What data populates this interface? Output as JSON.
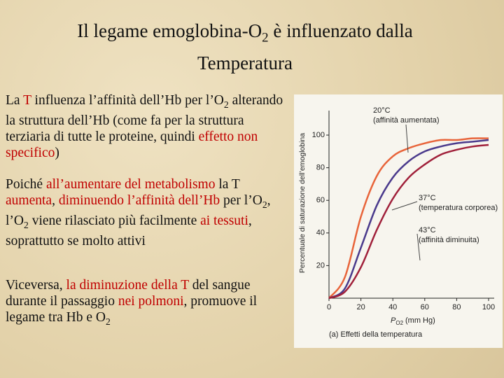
{
  "title": [
    {
      "text": "Il legame emoglobina-O"
    },
    {
      "text": "2",
      "sub": true
    },
    {
      "text": " è influenzato dalla Temperatura"
    }
  ],
  "paragraphs": [
    [
      {
        "text": "La "
      },
      {
        "text": "T",
        "color": "#c00000"
      },
      {
        "text": " influenza l’affinità dell’Hb per l’O"
      },
      {
        "text": "2",
        "sub": true
      },
      {
        "text": " alterando la struttura dell’Hb (come fa per la struttura terziaria di tutte le proteine, quindi "
      },
      {
        "text": "effetto non specifico",
        "color": "#c00000"
      },
      {
        "text": ")"
      }
    ],
    [
      {
        "text": "Poiché "
      },
      {
        "text": "all’aumentare del metabolismo",
        "color": "#c00000"
      },
      {
        "text": " la T "
      },
      {
        "text": "aumenta",
        "color": "#c00000"
      },
      {
        "text": ", "
      },
      {
        "text": "diminuendo l’affinità dell’Hb",
        "color": "#c00000"
      },
      {
        "text": " per l’O"
      },
      {
        "text": "2",
        "sub": true
      },
      {
        "text": ", l’O"
      },
      {
        "text": "2",
        "sub": true
      },
      {
        "text": " viene rilasciato più facilmente "
      },
      {
        "text": "ai tessuti",
        "color": "#c00000"
      },
      {
        "text": ", soprattutto se molto attivi"
      }
    ],
    [
      {
        "text": "Viceversa, "
      },
      {
        "text": "la diminuzione della T",
        "color": "#c00000"
      },
      {
        "text": " del sangue durante il passaggio "
      },
      {
        "text": "nei polmoni",
        "color": "#c00000"
      },
      {
        "text": ", promuove il legame tra Hb e O"
      },
      {
        "text": "2",
        "sub": true
      }
    ]
  ],
  "chart_data": {
    "type": "line",
    "ylabel": "Percentuale di saturazione dell’emoglobina",
    "xlabel": {
      "symbol": "P",
      "sub": "O2",
      "unit": "(mm Hg)"
    },
    "caption": "(a) Effetti della temperatura",
    "x": [
      0,
      10,
      20,
      30,
      40,
      50,
      60,
      70,
      80,
      90,
      100
    ],
    "series": [
      {
        "name": "20°C",
        "note": "(affinità aumentata)",
        "color": "#e8643a",
        "values": [
          0,
          13,
          50,
          75,
          87,
          92,
          95,
          97,
          97,
          98,
          98
        ]
      },
      {
        "name": "37°C",
        "note": "(temperatura corporea)",
        "color": "#4a3a8c",
        "values": [
          0,
          6,
          31,
          57,
          74,
          84,
          90,
          93,
          95,
          96,
          97
        ]
      },
      {
        "name": "43°C",
        "note": "(affinità diminuita)",
        "color": "#a0203a",
        "values": [
          0,
          4,
          19,
          42,
          61,
          74,
          82,
          88,
          91,
          93,
          94
        ]
      }
    ],
    "xlim": [
      0,
      100
    ],
    "xticks": [
      0,
      20,
      40,
      60,
      80,
      100
    ],
    "ylim": [
      0,
      115
    ],
    "yticks": [
      20,
      40,
      60,
      80,
      100
    ]
  }
}
